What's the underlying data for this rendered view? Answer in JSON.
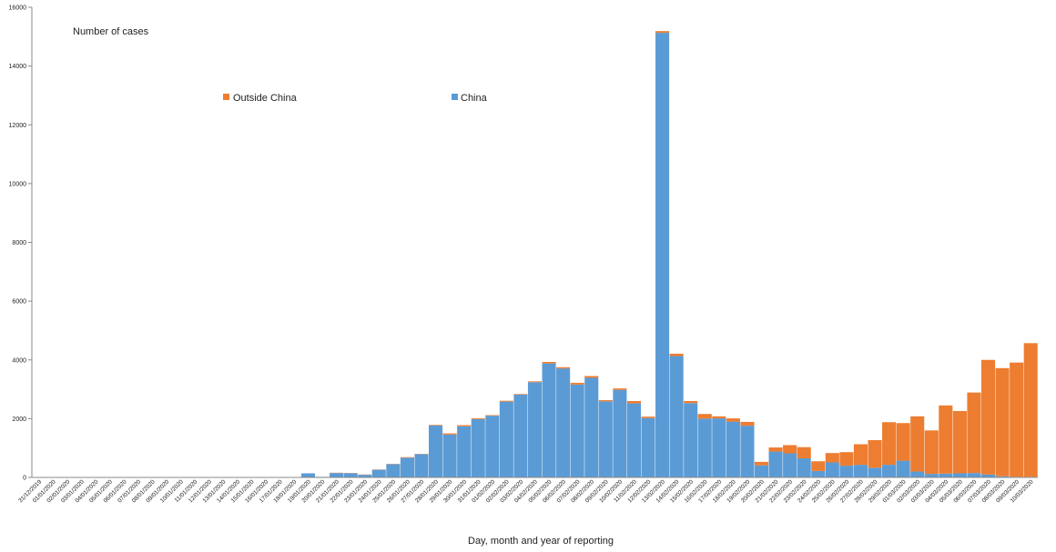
{
  "chart_data": {
    "type": "bar",
    "stacked": true,
    "xlabel": "Day, month and year of reporting",
    "ylabel": "Number of cases",
    "ylim": [
      0,
      16000
    ],
    "yticks": [
      0,
      2000,
      4000,
      6000,
      8000,
      10000,
      12000,
      14000,
      16000
    ],
    "legend_placement": "top-center",
    "categories": [
      "31/12/2019",
      "01/01/2020",
      "02/01/2020",
      "03/01/2020",
      "04/01/2020",
      "05/01/2020",
      "06/01/2020",
      "07/01/2020",
      "08/01/2020",
      "09/01/2020",
      "10/01/2020",
      "11/01/2020",
      "12/01/2020",
      "13/01/2020",
      "14/01/2020",
      "15/01/2020",
      "16/01/2020",
      "17/01/2020",
      "18/01/2020",
      "19/01/2020",
      "20/01/2020",
      "21/01/2020",
      "22/01/2020",
      "23/01/2020",
      "24/01/2020",
      "25/01/2020",
      "26/01/2020",
      "27/01/2020",
      "28/01/2020",
      "29/01/2020",
      "30/01/2020",
      "31/01/2020",
      "01/02/2020",
      "02/02/2020",
      "03/02/2020",
      "04/02/2020",
      "05/02/2020",
      "06/02/2020",
      "07/02/2020",
      "08/02/2020",
      "09/02/2020",
      "10/02/2020",
      "11/02/2020",
      "12/02/2020",
      "13/02/2020",
      "14/02/2020",
      "15/02/2020",
      "16/02/2020",
      "17/02/2020",
      "18/02/2020",
      "19/02/2020",
      "20/02/2020",
      "21/02/2020",
      "22/02/2020",
      "23/02/2020",
      "24/02/2020",
      "25/02/2020",
      "26/02/2020",
      "27/02/2020",
      "28/02/2020",
      "29/02/2020",
      "01/03/2020",
      "02/03/2020",
      "03/03/2020",
      "04/03/2020",
      "05/03/2020",
      "06/03/2020",
      "07/03/2020",
      "08/03/2020",
      "09/03/2020",
      "10/03/2020"
    ],
    "series": [
      {
        "name": "China",
        "color": "#5B9BD5",
        "values": [
          0,
          0,
          0,
          0,
          0,
          0,
          0,
          0,
          0,
          0,
          0,
          0,
          0,
          0,
          0,
          0,
          0,
          0,
          0,
          140,
          20,
          150,
          140,
          90,
          260,
          450,
          670,
          790,
          1770,
          1460,
          1740,
          1980,
          2100,
          2580,
          2820,
          3240,
          3880,
          3710,
          3160,
          3390,
          2590,
          2980,
          2520,
          2020,
          15130,
          4130,
          2530,
          2000,
          2010,
          1900,
          1760,
          410,
          880,
          820,
          650,
          220,
          510,
          400,
          430,
          330,
          430,
          570,
          200,
          120,
          130,
          140,
          150,
          100,
          40,
          20,
          20
        ]
      },
      {
        "name": "Outside China",
        "color": "#ED7D31",
        "values": [
          0,
          0,
          0,
          0,
          0,
          0,
          0,
          0,
          0,
          0,
          0,
          0,
          0,
          0,
          0,
          0,
          0,
          0,
          0,
          0,
          0,
          10,
          10,
          10,
          10,
          10,
          20,
          10,
          20,
          40,
          40,
          30,
          20,
          30,
          20,
          30,
          50,
          40,
          60,
          60,
          40,
          50,
          80,
          50,
          60,
          80,
          70,
          160,
          70,
          110,
          130,
          120,
          140,
          280,
          380,
          330,
          320,
          460,
          700,
          940,
          1450,
          1280,
          1880,
          1480,
          2320,
          2120,
          2740,
          3900,
          3680,
          3890,
          4550
        ]
      }
    ]
  }
}
